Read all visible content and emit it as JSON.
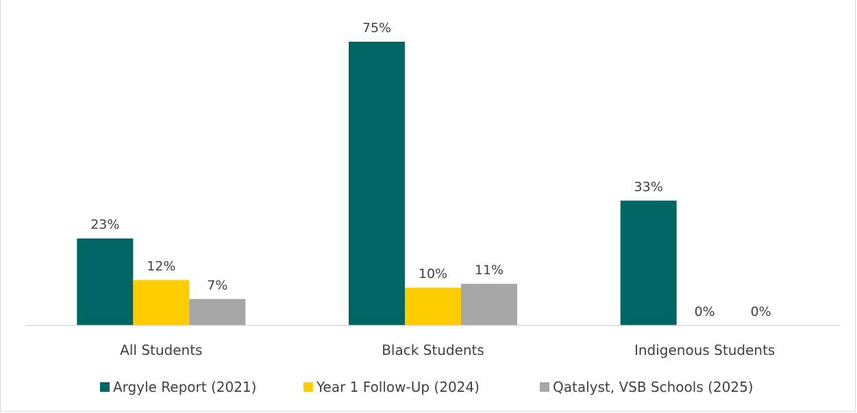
{
  "chart_data": {
    "type": "bar",
    "title": "",
    "categories": [
      "All Students",
      "Black Students",
      "Indigenous Students"
    ],
    "series": [
      {
        "name": "Argyle Report (2021)",
        "color": "#006663",
        "values": [
          23,
          75,
          33
        ],
        "labels": [
          "23%",
          "75%",
          "33%"
        ]
      },
      {
        "name": "Year 1 Follow-Up (2024)",
        "color": "#ffcc00",
        "values": [
          12,
          10,
          0
        ],
        "labels": [
          "12%",
          "10%",
          "0%"
        ]
      },
      {
        "name": "Qatalyst, VSB Schools (2025)",
        "color": "#a6a6a6",
        "values": [
          7,
          11,
          0
        ],
        "labels": [
          "7%",
          "11%",
          "0%"
        ]
      }
    ],
    "ylim": [
      0,
      80
    ],
    "grid": false,
    "legend": "bottom"
  }
}
